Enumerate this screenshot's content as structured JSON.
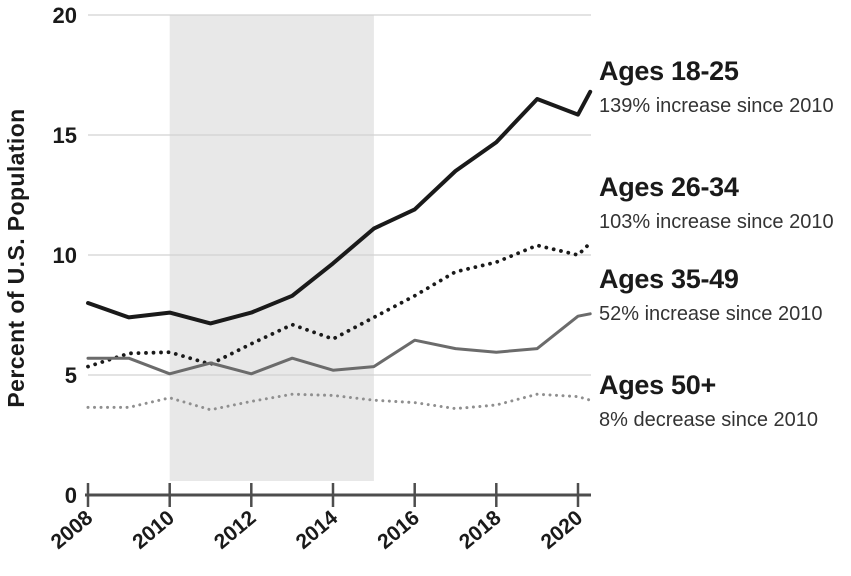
{
  "chart_data": {
    "type": "line",
    "title": "",
    "ylabel": "Percent of U.S. Population",
    "xlabel": "",
    "x": [
      2008,
      2009,
      2010,
      2011,
      2012,
      2013,
      2014,
      2015,
      2016,
      2017,
      2018,
      2019,
      2020,
      2020.3
    ],
    "x_ticks": [
      2008,
      2010,
      2012,
      2014,
      2016,
      2018,
      2020
    ],
    "x_tick_labels": [
      "2008",
      "2010",
      "2012",
      "2014",
      "2016",
      "2018",
      "2020"
    ],
    "y_ticks": [
      0,
      5,
      10,
      15,
      20
    ],
    "ylim": [
      0,
      20
    ],
    "xlim": [
      2008,
      2020.3
    ],
    "grid": true,
    "legend_position": "right",
    "background_color": "#ffffff",
    "gridline_color": "#d2d2d2",
    "axis_color": "#4d4d4d",
    "text_color": "#1a1a1a",
    "shaded_region": {
      "x_start": 2010,
      "x_end": 2015,
      "color": "#e8e8e8"
    },
    "series": [
      {
        "name": "Ages 18-25",
        "annotation": "139% increase since 2010",
        "line_style": "solid",
        "color": "#1a1a1a",
        "stroke_width": 4,
        "values": [
          8.0,
          7.4,
          7.6,
          7.15,
          7.6,
          8.3,
          9.65,
          11.1,
          11.9,
          13.5,
          14.7,
          16.5,
          15.85,
          16.8
        ]
      },
      {
        "name": "Ages 26-34",
        "annotation": "103% increase since 2010",
        "line_style": "dotted",
        "color": "#1a1a1a",
        "stroke_width": 3.8,
        "values": [
          5.35,
          5.9,
          5.95,
          5.45,
          6.3,
          7.1,
          6.5,
          7.4,
          8.3,
          9.3,
          9.7,
          10.4,
          10.0,
          10.5
        ]
      },
      {
        "name": "Ages 35-49",
        "annotation": "52% increase since 2010",
        "line_style": "solid",
        "color": "#6b6b6b",
        "stroke_width": 3,
        "values": [
          5.7,
          5.7,
          5.05,
          5.5,
          5.05,
          5.7,
          5.2,
          5.35,
          6.45,
          6.1,
          5.95,
          6.1,
          7.45,
          7.55
        ]
      },
      {
        "name": "Ages 50+",
        "annotation": "8% decrease since 2010",
        "line_style": "dotted",
        "color": "#8f8f8f",
        "stroke_width": 3,
        "values": [
          3.65,
          3.65,
          4.05,
          3.55,
          3.9,
          4.2,
          4.15,
          3.95,
          3.85,
          3.6,
          3.75,
          4.2,
          4.1,
          3.95
        ]
      }
    ]
  }
}
